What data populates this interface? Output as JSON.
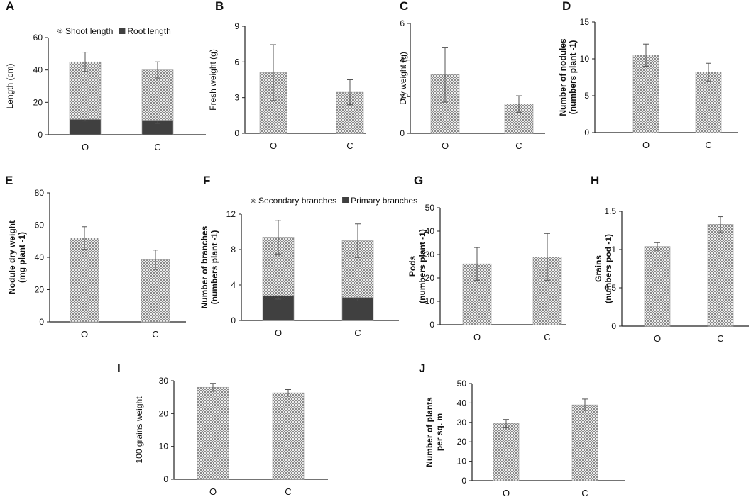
{
  "figure": {
    "x_categories": [
      "O",
      "C"
    ]
  },
  "chart_data": [
    {
      "panel": "A",
      "type": "bar",
      "stacked": true,
      "categories": [
        "O",
        "C"
      ],
      "ylabel": "Length (cm)",
      "ylim": [
        0,
        60
      ],
      "yticks": [
        0,
        20,
        40,
        60
      ],
      "legend_position": "top",
      "series": [
        {
          "name": "Root length",
          "values": [
            9.5,
            9.0
          ],
          "errors": [
            1.0,
            2.0
          ]
        },
        {
          "name": "Shoot length",
          "values": [
            35.5,
            31.0
          ],
          "errors": [
            6.0,
            5.0
          ]
        }
      ]
    },
    {
      "panel": "B",
      "type": "bar",
      "categories": [
        "O",
        "C"
      ],
      "ylabel": "Fresh weight (g)",
      "ylim": [
        0,
        9
      ],
      "yticks": [
        0,
        3,
        6,
        9
      ],
      "series": [
        {
          "name": "Fresh weight",
          "values": [
            5.1,
            3.45
          ],
          "errors": [
            2.35,
            1.05
          ]
        }
      ]
    },
    {
      "panel": "C",
      "type": "bar",
      "categories": [
        "O",
        "C"
      ],
      "ylabel": "Dry weight (g)",
      "ylim": [
        0,
        6
      ],
      "yticks": [
        0,
        2,
        4,
        6
      ],
      "series": [
        {
          "name": "Dry weight",
          "values": [
            3.2,
            1.6
          ],
          "errors": [
            1.5,
            0.45
          ]
        }
      ]
    },
    {
      "panel": "D",
      "type": "bar",
      "categories": [
        "O",
        "C"
      ],
      "ylabel_lines": [
        "Number of nodules",
        "(numbers plant -1)"
      ],
      "ylim": [
        0,
        15
      ],
      "yticks": [
        0,
        5,
        10,
        15
      ],
      "series": [
        {
          "name": "Number of nodules",
          "values": [
            10.5,
            8.2
          ],
          "errors": [
            1.5,
            1.2
          ]
        }
      ]
    },
    {
      "panel": "E",
      "type": "bar",
      "categories": [
        "O",
        "C"
      ],
      "ylabel_lines": [
        "Nodule dry weight",
        "(mg plant -1)"
      ],
      "ylim": [
        0,
        80
      ],
      "yticks": [
        0,
        20,
        40,
        60,
        80
      ],
      "series": [
        {
          "name": "Nodule dry weight",
          "values": [
            52,
            38.5
          ],
          "errors": [
            7,
            6
          ]
        }
      ]
    },
    {
      "panel": "F",
      "type": "bar",
      "stacked": true,
      "categories": [
        "O",
        "C"
      ],
      "ylabel_lines": [
        "Number of branches",
        "(numbers plant -1)"
      ],
      "ylim": [
        0,
        12
      ],
      "yticks": [
        0,
        4,
        8,
        12
      ],
      "legend_position": "top",
      "series": [
        {
          "name": "Primary branches",
          "values": [
            2.8,
            2.6
          ],
          "errors": [
            0.4,
            0.4
          ]
        },
        {
          "name": "Secondary branches",
          "values": [
            6.6,
            6.4
          ],
          "errors": [
            1.9,
            1.9
          ]
        }
      ]
    },
    {
      "panel": "G",
      "type": "bar",
      "categories": [
        "O",
        "C"
      ],
      "ylabel_lines": [
        "Pods",
        "(numbers plant -1)"
      ],
      "ylim": [
        0,
        50
      ],
      "yticks": [
        0,
        10,
        20,
        30,
        40,
        50
      ],
      "series": [
        {
          "name": "Pods",
          "values": [
            26,
            29
          ],
          "errors": [
            7,
            10
          ]
        }
      ]
    },
    {
      "panel": "H",
      "type": "bar",
      "categories": [
        "O",
        "C"
      ],
      "ylabel_lines": [
        "Grains",
        "(numbers pod -1)"
      ],
      "ylim": [
        0,
        1.5
      ],
      "yticks": [
        "0",
        "0.5",
        "1",
        "1.5"
      ],
      "series": [
        {
          "name": "Grains",
          "values": [
            1.04,
            1.33
          ],
          "errors": [
            0.05,
            0.1
          ]
        }
      ]
    },
    {
      "panel": "I",
      "type": "bar",
      "categories": [
        "O",
        "C"
      ],
      "ylabel": "100 grains weight",
      "ylim": [
        0,
        30
      ],
      "yticks": [
        0,
        10,
        20,
        30
      ],
      "series": [
        {
          "name": "100 grains weight",
          "values": [
            28,
            26.3
          ],
          "errors": [
            1.2,
            1.0
          ]
        }
      ]
    },
    {
      "panel": "J",
      "type": "bar",
      "categories": [
        "O",
        "C"
      ],
      "ylabel_lines": [
        "Number of plants",
        "per sq. m"
      ],
      "ylim": [
        0,
        50
      ],
      "yticks": [
        0,
        10,
        20,
        30,
        40,
        50
      ],
      "series": [
        {
          "name": "Number of plants per sq. m",
          "values": [
            29.5,
            39
          ],
          "errors": [
            2.0,
            3.0
          ]
        }
      ]
    }
  ]
}
